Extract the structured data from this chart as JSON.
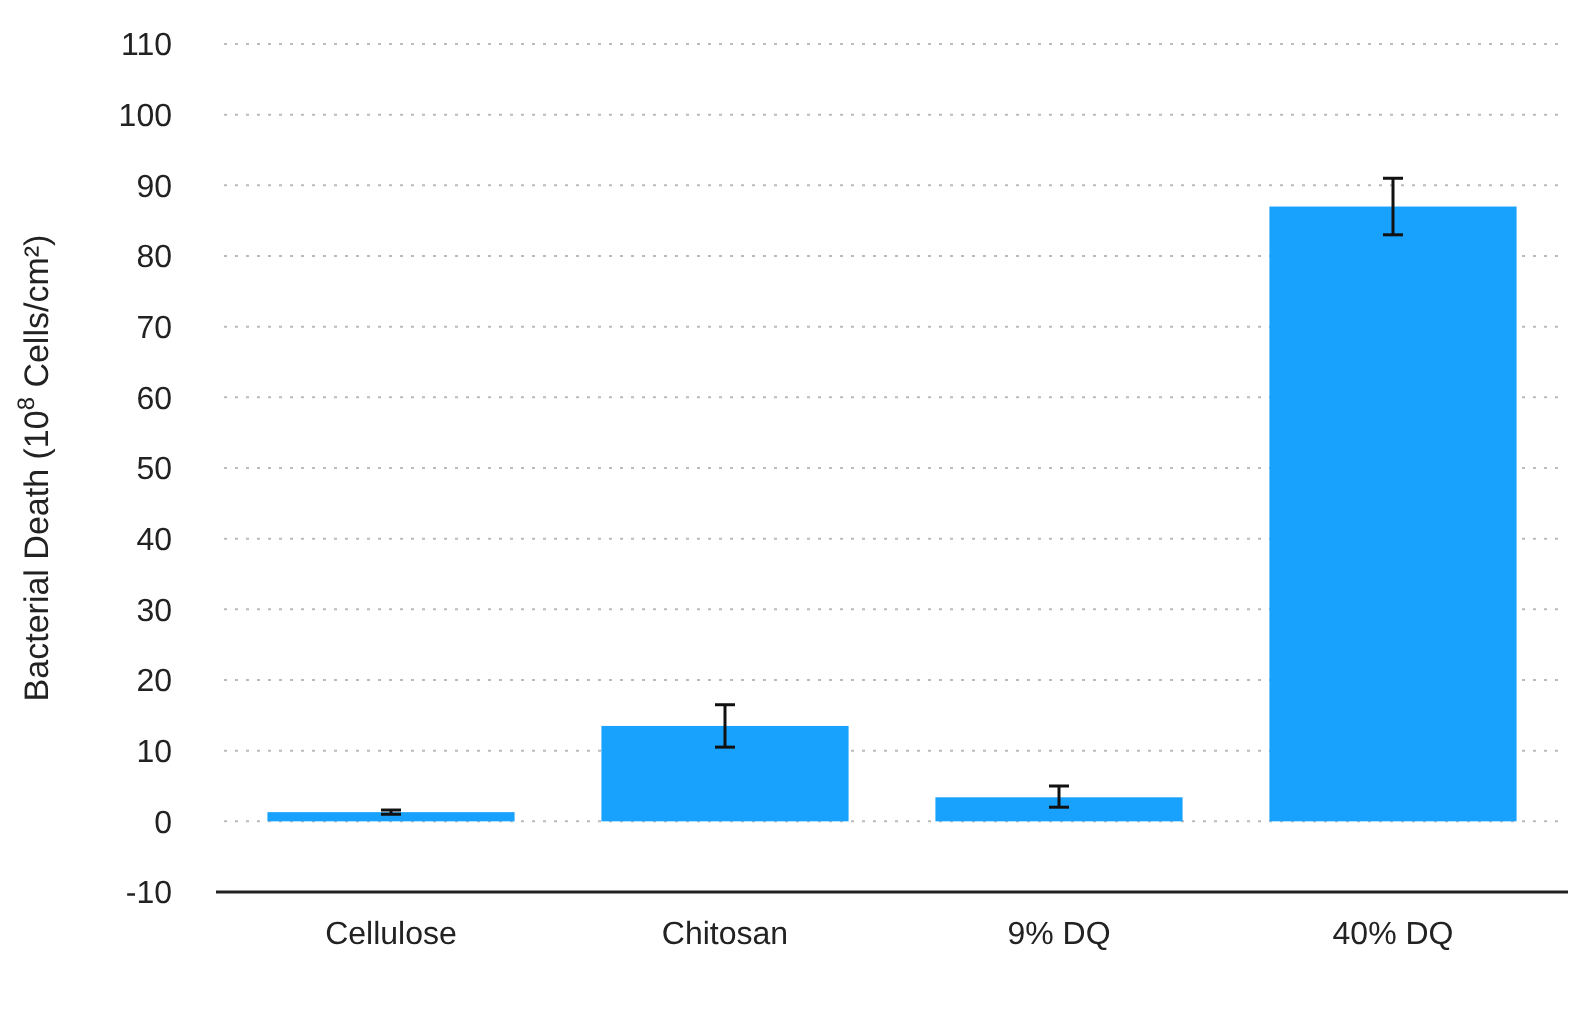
{
  "chart_data": {
    "type": "bar",
    "ylabel": "Bacterial Death (10$^{8}$ Cells/cm²)",
    "categories": [
      "Cellulose",
      "Chitosan",
      "9% DQ",
      "40% DQ"
    ],
    "values": [
      1.3,
      13.5,
      3.4,
      87
    ],
    "errors": [
      0.3,
      3,
      [
        2,
        5
      ],
      4
    ],
    "color": "#18a2fd",
    "ylim": [
      -10,
      110
    ],
    "yticks": [
      -10,
      0,
      10,
      20,
      30,
      40,
      50,
      60,
      70,
      80,
      90,
      100,
      110
    ],
    "grid": "y"
  }
}
